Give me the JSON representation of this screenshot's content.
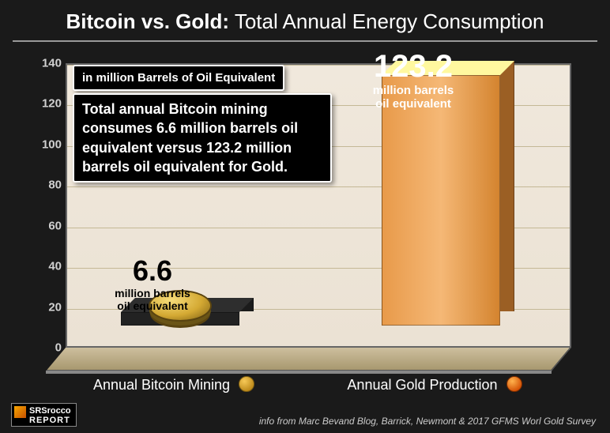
{
  "title": {
    "bold": "Bitcoin vs. Gold:",
    "rest": " Total Annual Energy Consumption"
  },
  "chart": {
    "type": "bar",
    "ylim": [
      0,
      140
    ],
    "ytick_step": 20,
    "yticks": [
      0,
      20,
      40,
      60,
      80,
      100,
      120,
      140
    ],
    "background_gradient": [
      "#f0e8dc",
      "#ebe2d4"
    ],
    "floor_gradient": [
      "#cdbf9e",
      "#a8986f"
    ],
    "grid_color": "#c4b896",
    "tick_color": "#d0d0d0",
    "series": [
      {
        "key": "bitcoin",
        "xlabel": "Annual Bitcoin Mining",
        "value": 6.6,
        "value_display": "6.6",
        "subtext": "million barrels\noil equivalent",
        "bar_color": "#222222",
        "value_color": "#000000",
        "icon": "bitcoin-coin"
      },
      {
        "key": "gold",
        "xlabel": "Annual Gold Production",
        "value": 123.2,
        "value_display": "123.2",
        "subtext": "million barrels\noil equivalent",
        "bar_color_gradient": [
          "#e89a4a",
          "#f5b876",
          "#d4842f"
        ],
        "value_color": "#ffffff",
        "icon": "gold-flame"
      }
    ]
  },
  "callouts": {
    "unit": "in million Barrels of Oil Equivalent",
    "description": "Total annual Bitcoin mining consumes 6.6 million barrels oil equivalent versus 123.2 million barrels oil equivalent for Gold."
  },
  "footer": {
    "logo_line1": "SRSrocco",
    "logo_line2": "REPORT",
    "info": "info from Marc Bevand Blog, Barrick, Newmont & 2017 GFMS Worl Gold Survey"
  }
}
